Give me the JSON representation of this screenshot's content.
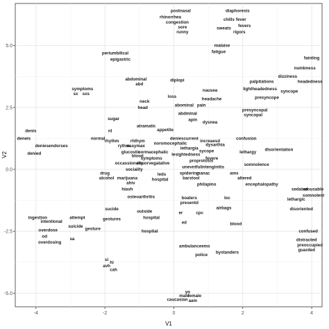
{
  "chart_data": {
    "type": "scatter",
    "title": "",
    "xlabel": "V1",
    "ylabel": "V2",
    "xlim": [
      -4.6,
      4.3
    ],
    "ylim": [
      -5.55,
      6.7
    ],
    "grid": true,
    "x_ticks": [
      -4,
      -2,
      0,
      2,
      4
    ],
    "x_tick_labels": [
      "-4",
      "-2",
      "0",
      "2",
      "4"
    ],
    "y_ticks": [
      -5.0,
      -2.5,
      0.0,
      2.5,
      5.0
    ],
    "y_tick_labels": [
      "-5.0",
      "-2.5",
      "0.0",
      "2.5",
      "5.0"
    ],
    "points": [
      {
        "label": "postnasal",
        "x": 0.2,
        "y": 6.4
      },
      {
        "label": "rhinorrhea",
        "x": -0.1,
        "y": 6.15
      },
      {
        "label": "congestion",
        "x": 0.1,
        "y": 5.95
      },
      {
        "label": "sore",
        "x": 0.25,
        "y": 5.75
      },
      {
        "label": "runny",
        "x": 0.25,
        "y": 5.55
      },
      {
        "label": "diaphoresis",
        "x": 1.85,
        "y": 6.4
      },
      {
        "label": "chills",
        "x": 1.6,
        "y": 6.05
      },
      {
        "label": "fever",
        "x": 1.95,
        "y": 6.05
      },
      {
        "label": "fevers",
        "x": 2.05,
        "y": 5.8
      },
      {
        "label": "sweats",
        "x": 1.45,
        "y": 5.7
      },
      {
        "label": "rigors",
        "x": 1.9,
        "y": 5.55
      },
      {
        "label": "malaise",
        "x": 1.4,
        "y": 5.0
      },
      {
        "label": "fatigue",
        "x": 1.3,
        "y": 4.75
      },
      {
        "label": "periumbilical",
        "x": -1.7,
        "y": 4.7
      },
      {
        "label": "epigastric",
        "x": -1.55,
        "y": 4.45
      },
      {
        "label": "fainting",
        "x": 4.0,
        "y": 4.5
      },
      {
        "label": "numbness",
        "x": 3.8,
        "y": 4.1
      },
      {
        "label": "dizziness",
        "x": 3.3,
        "y": 3.75
      },
      {
        "label": "palpitations",
        "x": 2.55,
        "y": 3.55
      },
      {
        "label": "headedness",
        "x": 3.95,
        "y": 3.55
      },
      {
        "label": "lightheadedness",
        "x": 2.5,
        "y": 3.25
      },
      {
        "label": "syncope",
        "x": 3.35,
        "y": 3.15
      },
      {
        "label": "presyncope",
        "x": 2.7,
        "y": 2.9
      },
      {
        "label": "abdominal",
        "x": -1.1,
        "y": 3.65
      },
      {
        "label": "abd",
        "x": -1.0,
        "y": 3.45
      },
      {
        "label": "diplopi",
        "x": 0.1,
        "y": 3.6
      },
      {
        "label": "symptoms",
        "x": -2.65,
        "y": 3.25
      },
      {
        "label": "sx",
        "x": -2.85,
        "y": 3.05
      },
      {
        "label": "sxs",
        "x": -2.55,
        "y": 3.05
      },
      {
        "label": "nausea",
        "x": 1.05,
        "y": 3.2
      },
      {
        "label": "loss",
        "x": -0.05,
        "y": 2.95
      },
      {
        "label": "headache",
        "x": 1.1,
        "y": 2.85
      },
      {
        "label": "neck",
        "x": -0.85,
        "y": 2.75
      },
      {
        "label": "head",
        "x": -0.9,
        "y": 2.5
      },
      {
        "label": "abominal",
        "x": 0.3,
        "y": 2.6
      },
      {
        "label": "pain",
        "x": 0.8,
        "y": 2.6
      },
      {
        "label": "abdminal",
        "x": 0.4,
        "y": 2.25
      },
      {
        "label": "presyncopal",
        "x": 2.35,
        "y": 2.4
      },
      {
        "label": "syncopal",
        "x": 2.3,
        "y": 2.2
      },
      {
        "label": "apin",
        "x": 0.55,
        "y": 2.0
      },
      {
        "label": "dysnea",
        "x": 1.05,
        "y": 1.9
      },
      {
        "label": "sugar",
        "x": -1.75,
        "y": 2.05
      },
      {
        "label": "atramatic",
        "x": -0.8,
        "y": 1.75
      },
      {
        "label": "appetite",
        "x": -0.25,
        "y": 1.6
      },
      {
        "label": "denis",
        "x": -4.15,
        "y": 1.55
      },
      {
        "label": "nl",
        "x": -1.85,
        "y": 1.55
      },
      {
        "label": "deneis",
        "x": -4.35,
        "y": 1.25
      },
      {
        "label": "normal",
        "x": -2.2,
        "y": 1.25
      },
      {
        "label": "rhythm",
        "x": -1.8,
        "y": 1.15
      },
      {
        "label": "rhthym",
        "x": -1.05,
        "y": 1.15
      },
      {
        "label": "deniescurrent",
        "x": 0.3,
        "y": 1.25
      },
      {
        "label": "increaesd",
        "x": 1.05,
        "y": 1.15
      },
      {
        "label": "noromocephalic",
        "x": -0.1,
        "y": 1.05
      },
      {
        "label": "dysarthia",
        "x": 1.2,
        "y": 1.0
      },
      {
        "label": "confusion",
        "x": 2.1,
        "y": 1.25
      },
      {
        "label": "deniesendorses",
        "x": -3.55,
        "y": 0.95
      },
      {
        "label": "rythm",
        "x": -1.45,
        "y": 0.95
      },
      {
        "label": "easymax",
        "x": -1.1,
        "y": 0.95
      },
      {
        "label": "lethargia",
        "x": 0.45,
        "y": 0.85
      },
      {
        "label": "sycope",
        "x": 0.95,
        "y": 0.75
      },
      {
        "label": "disorientation",
        "x": 3.05,
        "y": 0.8
      },
      {
        "label": "lethargy",
        "x": 2.15,
        "y": 0.7
      },
      {
        "label": "denied",
        "x": -4.05,
        "y": 0.65
      },
      {
        "label": "glucostic",
        "x": -1.25,
        "y": 0.7
      },
      {
        "label": "normacephalic",
        "x": -0.6,
        "y": 0.7
      },
      {
        "label": "lesightedness",
        "x": 0.35,
        "y": 0.6
      },
      {
        "label": "blood",
        "x": -1.05,
        "y": 0.55
      },
      {
        "label": "symptoms",
        "x": -0.65,
        "y": 0.45
      },
      {
        "label": "fevere",
        "x": 1.1,
        "y": 0.45
      },
      {
        "label": "proprotosis",
        "x": 0.8,
        "y": 0.35
      },
      {
        "label": "occassionally",
        "x": -1.3,
        "y": 0.25
      },
      {
        "label": "neuorvegatative",
        "x": -0.6,
        "y": 0.25
      },
      {
        "label": "somnolence",
        "x": 2.4,
        "y": 0.2
      },
      {
        "label": "unevntfulintenginitis",
        "x": 0.85,
        "y": 0.1
      },
      {
        "label": "ams",
        "x": 1.75,
        "y": -0.15
      },
      {
        "label": "sociality",
        "x": -1.15,
        "y": 0.0
      },
      {
        "label": "spidering",
        "x": 0.45,
        "y": -0.15
      },
      {
        "label": "manac",
        "x": 0.85,
        "y": -0.15
      },
      {
        "label": "drug",
        "x": -2.0,
        "y": -0.15
      },
      {
        "label": "leds",
        "x": -0.35,
        "y": -0.2
      },
      {
        "label": "altered",
        "x": 2.05,
        "y": -0.35
      },
      {
        "label": "alcohol",
        "x": -1.95,
        "y": -0.35
      },
      {
        "label": "marijuana",
        "x": -1.35,
        "y": -0.35
      },
      {
        "label": "hospital",
        "x": -0.4,
        "y": -0.4
      },
      {
        "label": "barstool",
        "x": 0.5,
        "y": -0.35
      },
      {
        "label": "encephalopathy",
        "x": 2.55,
        "y": -0.6
      },
      {
        "label": "ahiv",
        "x": -1.25,
        "y": -0.55
      },
      {
        "label": "philapino",
        "x": 0.95,
        "y": -0.6
      },
      {
        "label": "hiavh",
        "x": -1.35,
        "y": -0.8
      },
      {
        "label": "sedated",
        "x": 3.65,
        "y": -0.8
      },
      {
        "label": "arousable",
        "x": 4.05,
        "y": -0.8
      },
      {
        "label": "osteoarthritis",
        "x": -0.95,
        "y": -1.1
      },
      {
        "label": "boaters",
        "x": 0.45,
        "y": -1.15
      },
      {
        "label": "somnolent",
        "x": 4.05,
        "y": -1.05
      },
      {
        "label": "loc",
        "x": 1.55,
        "y": -1.15
      },
      {
        "label": "lethargic",
        "x": 3.55,
        "y": -1.2
      },
      {
        "label": "presentd",
        "x": 0.45,
        "y": -1.35
      },
      {
        "label": "sucide",
        "x": -1.8,
        "y": -1.6
      },
      {
        "label": "outside",
        "x": -0.85,
        "y": -1.7
      },
      {
        "label": "ingestion",
        "x": -3.95,
        "y": -1.95
      },
      {
        "label": "intentional",
        "x": -3.55,
        "y": -2.1
      },
      {
        "label": "attempt",
        "x": -2.8,
        "y": -1.95
      },
      {
        "label": "gestures",
        "x": -1.8,
        "y": -2.0
      },
      {
        "label": "hospital",
        "x": -0.65,
        "y": -1.95
      },
      {
        "label": "er",
        "x": 0.2,
        "y": -1.75
      },
      {
        "label": "cpc",
        "x": 0.75,
        "y": -1.75
      },
      {
        "label": "airbags",
        "x": 1.45,
        "y": -1.55
      },
      {
        "label": "disoriented",
        "x": 3.7,
        "y": -1.6
      },
      {
        "label": "ed",
        "x": 0.3,
        "y": -2.15
      },
      {
        "label": "overdose",
        "x": -3.65,
        "y": -2.45
      },
      {
        "label": "suicide",
        "x": -2.85,
        "y": -2.3
      },
      {
        "label": "gesture",
        "x": -2.35,
        "y": -2.4
      },
      {
        "label": "blood",
        "x": 1.8,
        "y": -2.2
      },
      {
        "label": "od",
        "x": -3.75,
        "y": -2.7
      },
      {
        "label": "hosptial",
        "x": -0.7,
        "y": -2.5
      },
      {
        "label": "confused",
        "x": 3.9,
        "y": -2.5
      },
      {
        "label": "sa",
        "x": -2.95,
        "y": -2.8
      },
      {
        "label": "overdosing",
        "x": -3.6,
        "y": -2.95
      },
      {
        "label": "distracted",
        "x": 3.85,
        "y": -2.85
      },
      {
        "label": "preoccupied",
        "x": 3.95,
        "y": -3.05
      },
      {
        "label": "ambulanceems",
        "x": 0.6,
        "y": -3.1
      },
      {
        "label": "guarded",
        "x": 3.85,
        "y": -3.25
      },
      {
        "label": "bystanders",
        "x": 1.55,
        "y": -3.35
      },
      {
        "label": "police",
        "x": 0.8,
        "y": -3.45
      },
      {
        "label": "si",
        "x": -1.95,
        "y": -3.65
      },
      {
        "label": "hi",
        "x": -1.8,
        "y": -3.75
      },
      {
        "label": "avh",
        "x": -1.95,
        "y": -3.9
      },
      {
        "label": "cah",
        "x": -1.75,
        "y": -4.05
      },
      {
        "label": "yo",
        "x": 0.4,
        "y": -4.95
      },
      {
        "label": "male",
        "x": 0.3,
        "y": -5.1
      },
      {
        "label": "female",
        "x": 0.6,
        "y": -5.1
      },
      {
        "label": "caucasian",
        "x": 0.1,
        "y": -5.25
      },
      {
        "label": "aam",
        "x": 0.55,
        "y": -5.3
      }
    ]
  }
}
